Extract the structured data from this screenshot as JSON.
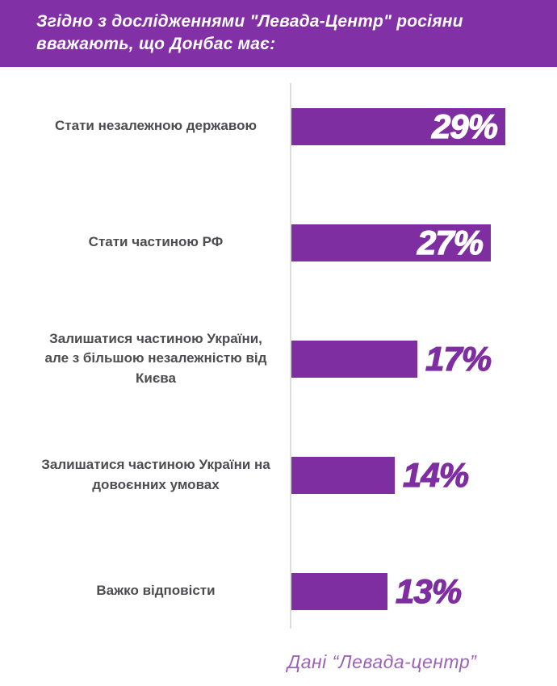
{
  "header": {
    "bg_color": "#8230A5",
    "text_color": "#FFFFFF"
  },
  "chart_data": {
    "type": "bar",
    "orientation": "horizontal",
    "title": "Згідно з дослідженнями \"Левада-Центр\" росіяни вважають, що Донбас має:",
    "categories": [
      "Стати незалежною державою",
      "Стати частиною РФ",
      "Залишатися частиною України, але з більшою незалежністю від Києва",
      "Залишатися частиною України на довоєнних умовах",
      "Важко відповісти"
    ],
    "values": [
      29,
      27,
      17,
      14,
      13
    ],
    "value_labels": [
      "29%",
      "27%",
      "17%",
      "14%",
      "13%"
    ],
    "unit": "%",
    "xlim": [
      0,
      29
    ],
    "grid": false,
    "legend": false,
    "bar_color": "#7E2EA0",
    "value_inside_color": "#FFFFFF",
    "value_outside_color": "#7E2EA0",
    "category_label_color": "#4C4C51",
    "axis_line_color": "#DDDDDD",
    "source": "Дані  “Левада-центр”"
  },
  "footer": {
    "color": "#9B63B5"
  }
}
